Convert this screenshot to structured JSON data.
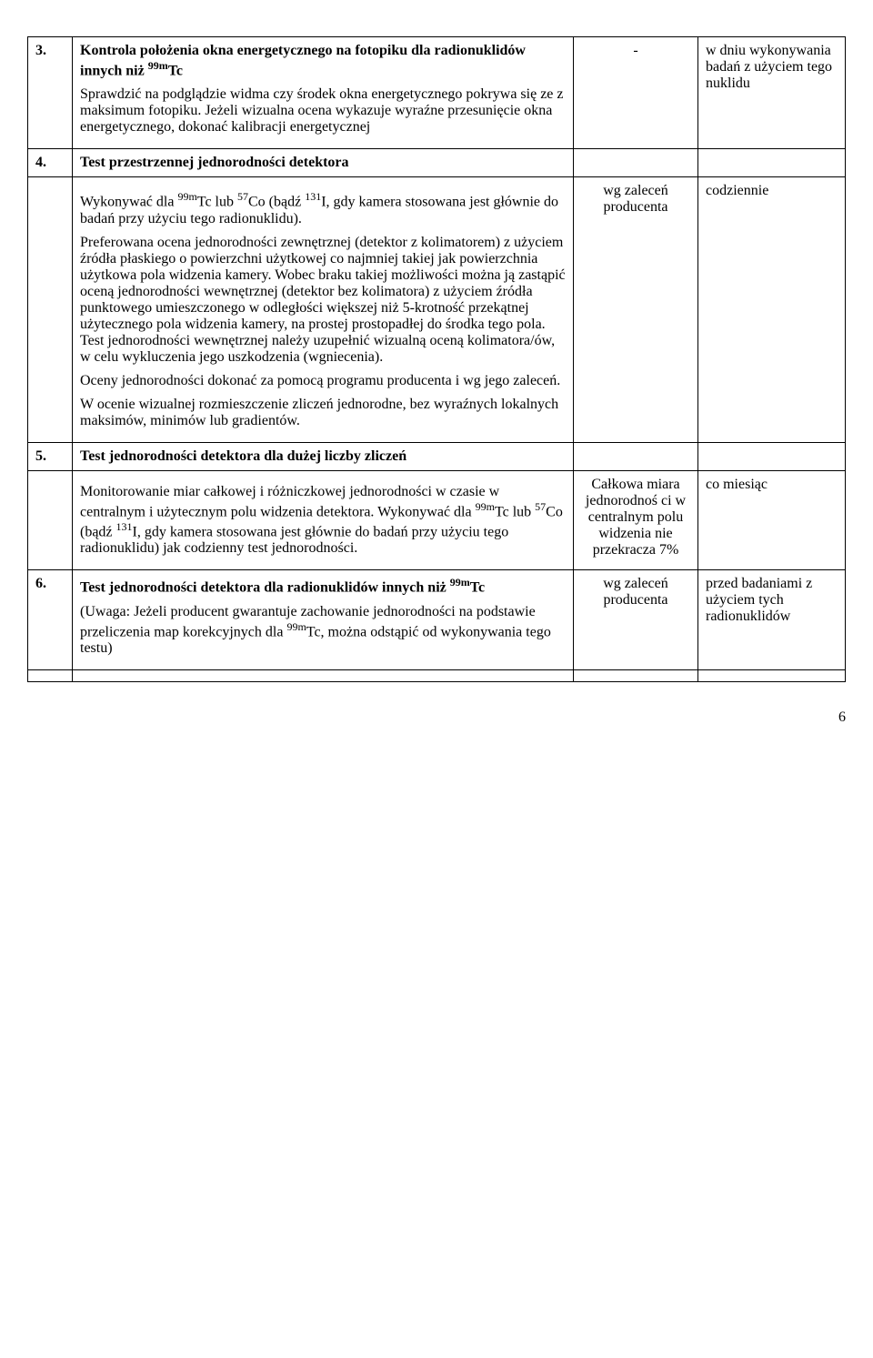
{
  "rows": [
    {
      "num": "3.",
      "title_html": "Kontrola położenia okna energetycznego na fotopiku dla radionuklidów innych niż <sup>99m</sup>Tc",
      "desc_paras": [
        "Sprawdzić na podglądzie widma czy środek okna energetycznego pokrywa się ze z maksimum fotopiku. Jeżeli wizualna ocena wykazuje wyraźne przesunięcie okna energetycznego, dokonać kalibracji energetycznej"
      ],
      "criteria": "-",
      "freq": "w dniu wykonywania badań z użyciem tego nuklidu"
    },
    {
      "num": "4.",
      "title_html": "Test przestrzennej jednorodności detektora",
      "header_only": true
    },
    {
      "num": "",
      "desc_paras_html": [
        "Wykonywać dla <sup>99m</sup>Tc lub <sup>57</sup>Co (bądź <sup>131</sup>I, gdy kamera stosowana jest głównie do badań przy użyciu tego radionuklidu).",
        "Preferowana ocena jednorodności zewnętrznej (detektor z kolimatorem) z użyciem źródła płaskiego o powierzchni użytkowej co najmniej takiej jak powierzchnia użytkowa pola widzenia kamery. Wobec braku takiej możliwości można ją zastąpić oceną jednorodności wewnętrznej (detektor bez kolimatora) z użyciem źródła punktowego umieszczonego w odległości większej niż 5-krotność przekątnej użytecznego pola widzenia kamery, na prostej prostopadłej do środka tego pola. Test jednorodności wewnętrznej należy uzupełnić wizualną oceną kolimatora/ów, w celu wykluczenia jego uszkodzenia (wgniecenia).",
        "Oceny jednorodności dokonać za pomocą programu producenta i wg jego zaleceń.",
        "W ocenie wizualnej rozmieszczenie zliczeń jednorodne, bez wyraźnych lokalnych maksimów, minimów lub gradientów."
      ],
      "criteria": "wg zaleceń producenta",
      "freq": "codziennie"
    },
    {
      "num": "5.",
      "title_html": "Test jednorodności detektora dla dużej liczby zliczeń",
      "header_only": true
    },
    {
      "num": "",
      "desc_paras_html": [
        "Monitorowanie miar całkowej i różniczkowej jednorodności w czasie w centralnym i użytecznym polu widzenia detektora. Wykonywać dla <sup>99m</sup>Tc lub <sup>57</sup>Co (bądź <sup>131</sup>I, gdy kamera stosowana jest głównie do badań przy użyciu tego radionuklidu) jak codzienny test jednorodności."
      ],
      "criteria_html": "Całkowa miara jednorodnoś ci w centralnym polu widzenia nie przekracza 7%",
      "freq": "co miesiąc"
    },
    {
      "num": "6.",
      "title_html": "Test jednorodności detektora dla radionuklidów innych niż <sup>99m</sup>Tc",
      "desc_paras_html": [
        "(Uwaga: Jeżeli producent gwarantuje zachowanie jednorodności na podstawie przeliczenia map korekcyjnych dla <sup>99m</sup>Tc, można odstąpić od wykonywania tego testu)"
      ],
      "criteria": "wg zaleceń producenta",
      "freq": "przed badaniami z użyciem tych radionuklidów"
    }
  ],
  "page_number": "6"
}
